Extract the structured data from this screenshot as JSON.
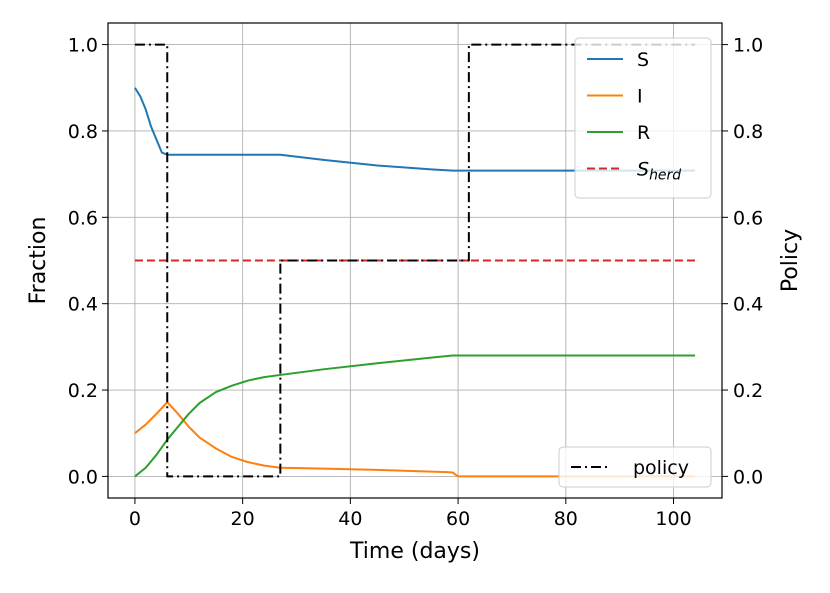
{
  "chart_data": {
    "type": "line",
    "xlabel": "Time (days)",
    "ylabel": "Fraction",
    "y2label": "Policy",
    "xlim": [
      -5,
      109
    ],
    "ylim": [
      -0.05,
      1.05
    ],
    "y2lim": [
      -0.05,
      1.05
    ],
    "xticks": [
      0,
      20,
      40,
      60,
      80,
      100
    ],
    "yticks": [
      0.0,
      0.2,
      0.4,
      0.6,
      0.8,
      1.0
    ],
    "y2ticks": [
      0.0,
      0.2,
      0.4,
      0.6,
      0.8,
      1.0
    ],
    "xtick_labels": [
      "0",
      "20",
      "40",
      "60",
      "80",
      "100"
    ],
    "ytick_labels": [
      "0.0",
      "0.2",
      "0.4",
      "0.6",
      "0.8",
      "1.0"
    ],
    "y2tick_labels": [
      "0.0",
      "0.2",
      "0.4",
      "0.6",
      "0.8",
      "1.0"
    ],
    "grid": true,
    "legend_position": "top-right",
    "legend2_position": "bottom-right",
    "series": [
      {
        "name": "S",
        "axis": "left",
        "color": "#1f77b4",
        "dash": "solid",
        "x": [
          0,
          1,
          2,
          3,
          4,
          5,
          6,
          10,
          15,
          20,
          27,
          35,
          45,
          55,
          59,
          65,
          80,
          104
        ],
        "y": [
          0.9,
          0.88,
          0.85,
          0.81,
          0.78,
          0.75,
          0.745,
          0.745,
          0.745,
          0.745,
          0.745,
          0.733,
          0.72,
          0.711,
          0.708,
          0.708,
          0.708,
          0.708
        ]
      },
      {
        "name": "I",
        "axis": "left",
        "color": "#ff7f0e",
        "dash": "solid",
        "x": [
          0,
          2,
          4,
          6,
          8,
          10,
          12,
          15,
          18,
          21,
          24,
          27,
          35,
          45,
          55,
          58,
          59,
          60,
          70,
          80,
          104
        ],
        "y": [
          0.1,
          0.12,
          0.145,
          0.172,
          0.145,
          0.115,
          0.09,
          0.065,
          0.045,
          0.033,
          0.025,
          0.02,
          0.018,
          0.015,
          0.011,
          0.01,
          0.009,
          0.0,
          0.0,
          0.0,
          0.0
        ]
      },
      {
        "name": "R",
        "axis": "left",
        "color": "#2ca02c",
        "dash": "solid",
        "x": [
          0,
          2,
          4,
          6,
          8,
          10,
          12,
          15,
          18,
          21,
          24,
          27,
          35,
          45,
          55,
          59,
          65,
          80,
          104
        ],
        "y": [
          0.0,
          0.02,
          0.05,
          0.085,
          0.115,
          0.145,
          0.17,
          0.195,
          0.21,
          0.222,
          0.23,
          0.235,
          0.248,
          0.262,
          0.275,
          0.28,
          0.28,
          0.28,
          0.28
        ]
      },
      {
        "name": "S_herd",
        "label_base": "S",
        "label_sub": "herd",
        "axis": "left",
        "color": "#d62728",
        "dash": "dashed",
        "x": [
          0,
          104
        ],
        "y": [
          0.5,
          0.5
        ]
      },
      {
        "name": "policy",
        "axis": "right",
        "color": "#000000",
        "dash": "dashdot",
        "x": [
          0,
          6,
          6,
          27,
          27,
          62,
          62,
          104
        ],
        "y": [
          1.0,
          1.0,
          0.0,
          0.0,
          0.5,
          0.5,
          1.0,
          1.0
        ]
      }
    ]
  }
}
